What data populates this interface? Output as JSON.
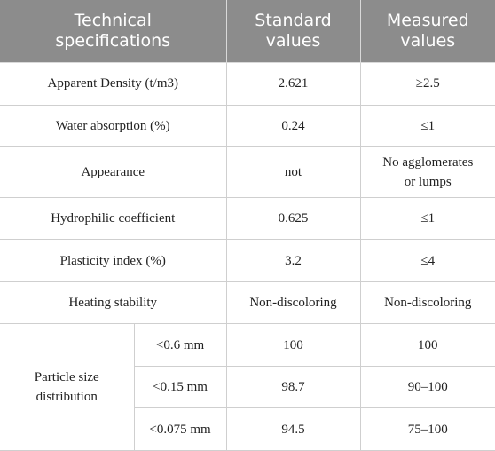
{
  "headers": {
    "spec": "Technical\nspecifications",
    "standard": "Standard\nvalues",
    "measured": "Measured\nvalues"
  },
  "rows": [
    {
      "spec": "Apparent Density (t/m3)",
      "standard": "2.621",
      "measured": "≥2.5"
    },
    {
      "spec": "Water absorption (%)",
      "standard": "0.24",
      "measured": "≤1"
    },
    {
      "spec": "Appearance",
      "standard": "not",
      "measured": "No agglomerates\nor lumps"
    },
    {
      "spec": "Hydrophilic coefficient",
      "standard": "0.625",
      "measured": "≤1"
    },
    {
      "spec": "Plasticity index (%)",
      "standard": "3.2",
      "measured": "≤4"
    },
    {
      "spec": "Heating stability",
      "standard": "Non-discoloring",
      "measured": "Non-discoloring"
    }
  ],
  "particle_size": {
    "label": "Particle size\ndistribution",
    "rows": [
      {
        "size": "<0.6 mm",
        "standard": "100",
        "measured": "100"
      },
      {
        "size": "<0.15 mm",
        "standard": "98.7",
        "measured": "90–100"
      },
      {
        "size": "<0.075 mm",
        "standard": "94.5",
        "measured": "75–100"
      }
    ]
  }
}
